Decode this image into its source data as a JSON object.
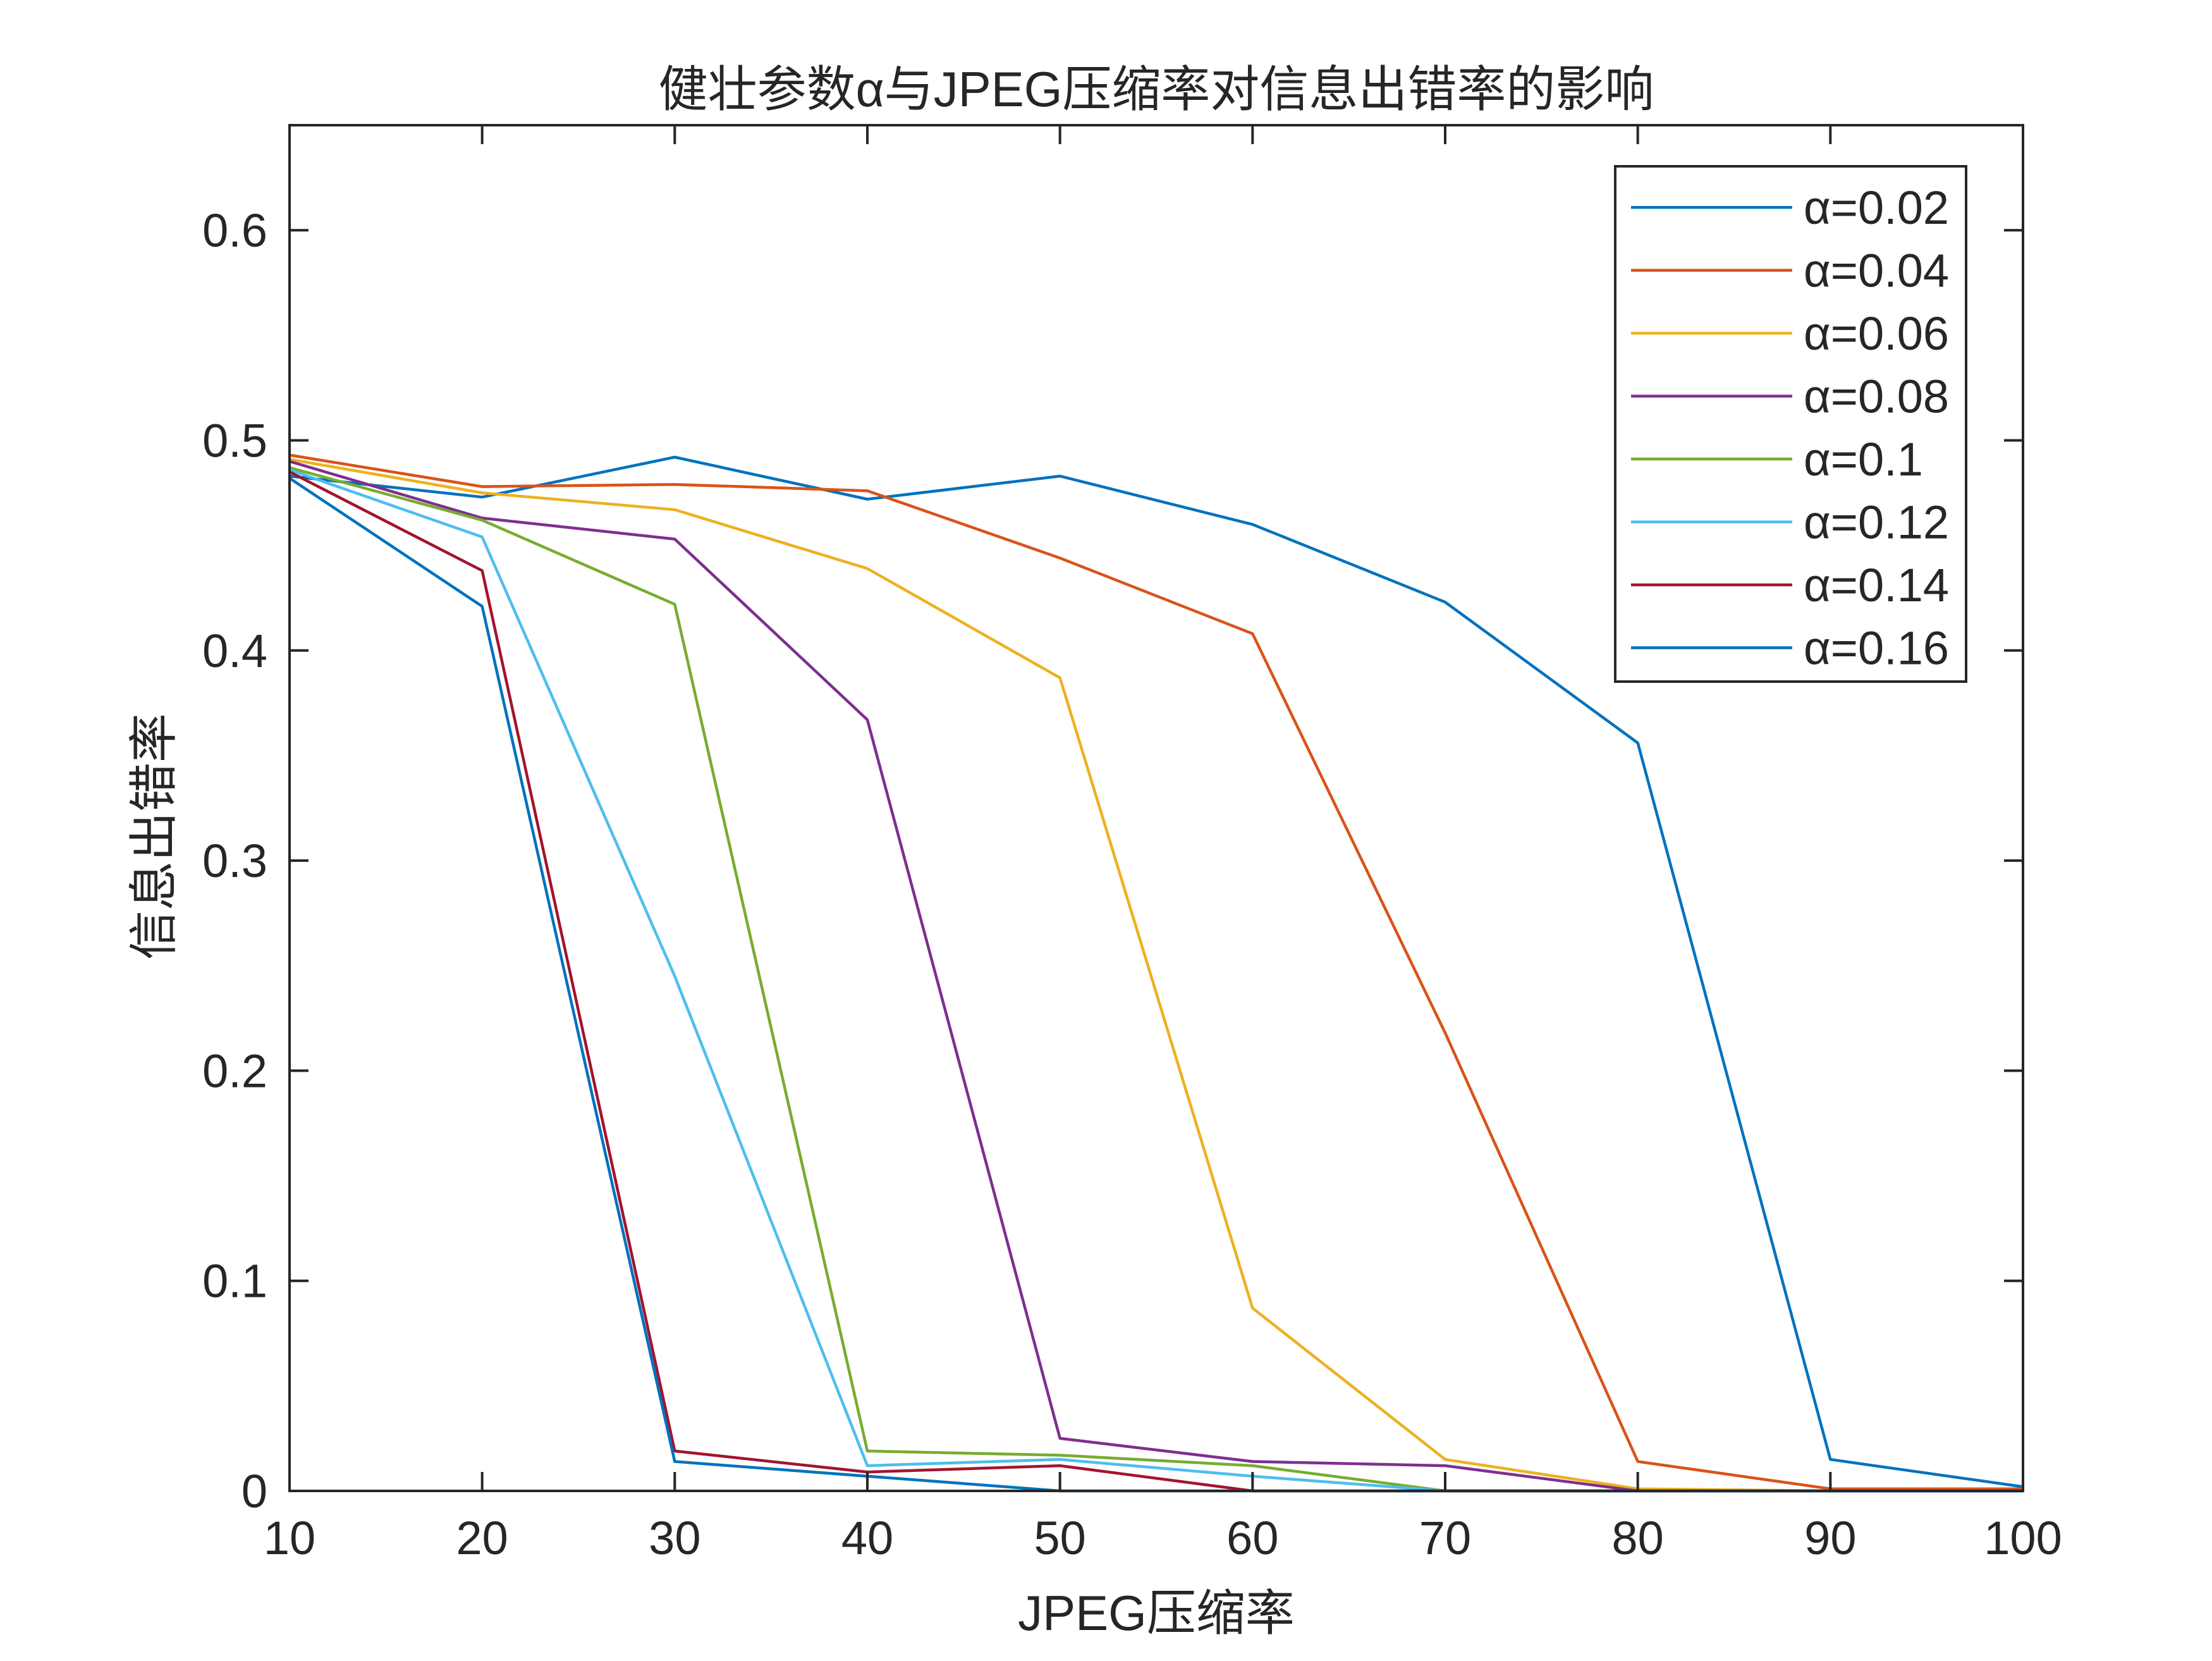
{
  "chart_data": {
    "type": "line",
    "title": "健壮参数α与JPEG压缩率对信息出错率的影响",
    "xlabel": "JPEG压缩率",
    "ylabel": "信息出错率",
    "x": [
      10,
      20,
      30,
      40,
      50,
      60,
      70,
      80,
      90,
      100
    ],
    "xlim": [
      10,
      100
    ],
    "ylim": [
      0,
      0.65
    ],
    "xticks": [
      10,
      20,
      30,
      40,
      50,
      60,
      70,
      80,
      90,
      100
    ],
    "yticks": [
      0,
      0.1,
      0.2,
      0.3,
      0.4,
      0.5,
      0.6
    ],
    "xtick_labels": [
      "10",
      "20",
      "30",
      "40",
      "50",
      "60",
      "70",
      "80",
      "90",
      "100"
    ],
    "ytick_labels": [
      "0",
      "0.1",
      "0.2",
      "0.3",
      "0.4",
      "0.5",
      "0.6"
    ],
    "grid": false,
    "legend_position": "top-right",
    "series": [
      {
        "name": "α=0.02",
        "color": "#0072BD",
        "values": [
          0.483,
          0.473,
          0.492,
          0.472,
          0.483,
          0.46,
          0.423,
          0.356,
          0.015,
          0.002
        ]
      },
      {
        "name": "α=0.04",
        "color": "#D95319",
        "values": [
          0.493,
          0.478,
          0.479,
          0.476,
          0.444,
          0.408,
          0.218,
          0.014,
          0.001,
          0.001
        ]
      },
      {
        "name": "α=0.06",
        "color": "#EDB120",
        "values": [
          0.491,
          0.475,
          0.467,
          0.439,
          0.387,
          0.087,
          0.015,
          0.001,
          0.0,
          0.0
        ]
      },
      {
        "name": "α=0.08",
        "color": "#7E2F8E",
        "values": [
          0.49,
          0.463,
          0.453,
          0.367,
          0.025,
          0.014,
          0.012,
          0.0,
          0.0,
          0.0
        ]
      },
      {
        "name": "α=0.1",
        "color": "#77AC30",
        "values": [
          0.487,
          0.462,
          0.422,
          0.019,
          0.017,
          0.012,
          0.0,
          0.0,
          0.0,
          0.0
        ]
      },
      {
        "name": "α=0.12",
        "color": "#4DBEEE",
        "values": [
          0.486,
          0.454,
          0.245,
          0.012,
          0.015,
          0.007,
          0.0,
          0.0,
          0.0,
          0.0
        ]
      },
      {
        "name": "α=0.14",
        "color": "#A2142F",
        "values": [
          0.485,
          0.438,
          0.019,
          0.009,
          0.012,
          0.0,
          0.0,
          0.0,
          0.0,
          0.0
        ]
      },
      {
        "name": "α=0.16",
        "color": "#0072BD",
        "values": [
          0.482,
          0.421,
          0.014,
          0.007,
          0.0,
          0.0,
          0.0,
          0.0,
          0.0,
          0.0
        ]
      }
    ]
  }
}
